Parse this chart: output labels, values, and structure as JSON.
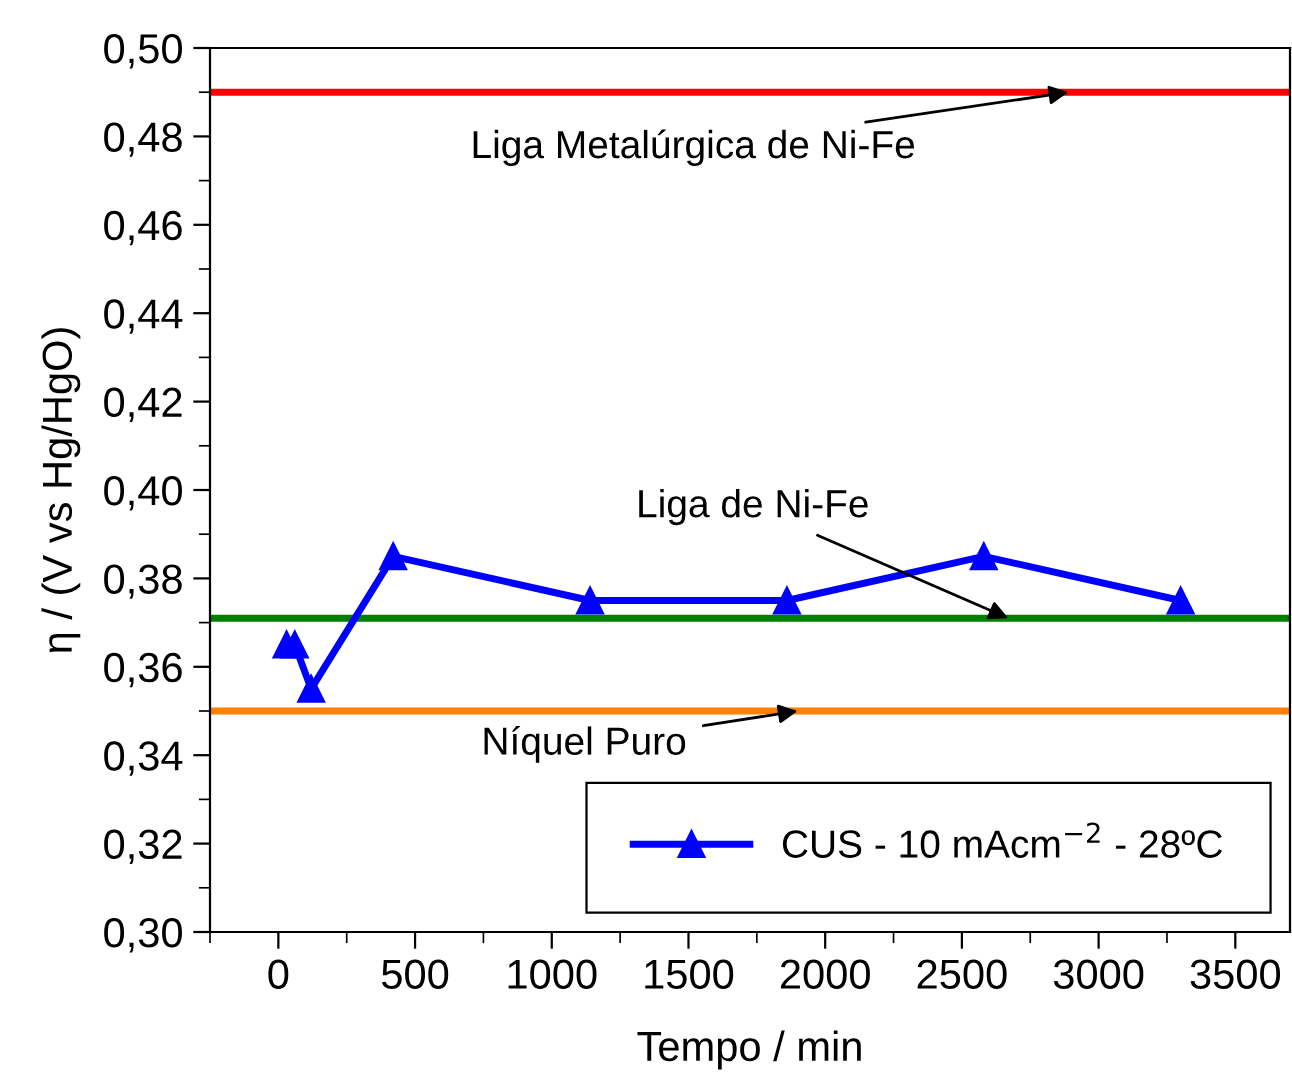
{
  "chart_data": {
    "type": "line",
    "xlabel": "Tempo / min",
    "ylabel": "η / (V vs Hg/HgO)",
    "x": [
      30,
      60,
      120,
      420,
      1140,
      1860,
      2580,
      3300
    ],
    "series": [
      {
        "name": "CUS - 10 mAcm$^{−2}$ - 28ºC",
        "color": "#0000ff",
        "values": [
          0.365,
          0.365,
          0.355,
          0.385,
          0.375,
          0.375,
          0.385,
          0.375
        ]
      }
    ],
    "marker": "triangle",
    "line_style": "solid",
    "legend": "bottom right",
    "grid": false,
    "xlim": [
      -250,
      3700
    ],
    "xticks": [
      0,
      500,
      1000,
      1500,
      2000,
      2500,
      3000,
      3500
    ],
    "ylim": [
      0.3,
      0.5
    ],
    "yticks": [
      {
        "value": 0.3,
        "label": "0,30"
      },
      {
        "value": 0.32,
        "label": "0,32"
      },
      {
        "value": 0.34,
        "label": "0,34"
      },
      {
        "value": 0.36,
        "label": "0,36"
      },
      {
        "value": 0.38,
        "label": "0,38"
      },
      {
        "value": 0.4,
        "label": "0,40"
      },
      {
        "value": 0.42,
        "label": "0,42"
      },
      {
        "value": 0.44,
        "label": "0,44"
      },
      {
        "value": 0.46,
        "label": "0,46"
      },
      {
        "value": 0.48,
        "label": "0,48"
      },
      {
        "value": 0.5,
        "label": "0,50"
      }
    ],
    "ref_lines": [
      {
        "axis": "y",
        "value": 0.49,
        "color": "#ff0000"
      },
      {
        "axis": "y",
        "value": 0.371,
        "color": "#008000"
      },
      {
        "axis": "y",
        "value": 0.35,
        "color": "#ff8000"
      }
    ],
    "annotations": [
      {
        "text": "Liga Metalúrgica de Ni-Fe",
        "x": 2890,
        "y": 0.49
      },
      {
        "text": "Liga de Ni-Fe",
        "x": 2670,
        "y": 0.371
      },
      {
        "text": "Níquel Puro",
        "x": 1900,
        "y": 0.35
      }
    ]
  }
}
